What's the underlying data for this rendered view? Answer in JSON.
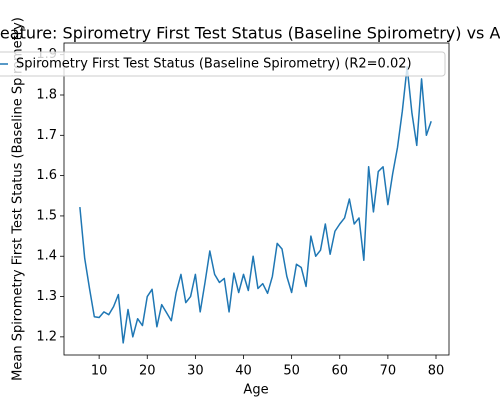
{
  "chart_data": {
    "type": "line",
    "title": "Feature: Spirometry First Test Status (Baseline Spirometry) vs Age",
    "xlabel": "Age",
    "ylabel": "Mean Spirometry First Test Status (Baseline Spirometry)",
    "x": [
      6,
      7,
      8,
      9,
      10,
      11,
      12,
      13,
      14,
      15,
      16,
      17,
      18,
      19,
      20,
      21,
      22,
      23,
      24,
      25,
      26,
      27,
      28,
      29,
      30,
      31,
      32,
      33,
      34,
      35,
      36,
      37,
      38,
      39,
      40,
      41,
      42,
      43,
      44,
      45,
      46,
      47,
      48,
      49,
      50,
      51,
      52,
      53,
      54,
      55,
      56,
      57,
      58,
      59,
      60,
      61,
      62,
      63,
      64,
      65,
      66,
      67,
      68,
      69,
      70,
      71,
      72,
      73,
      74,
      75,
      76,
      77,
      78,
      79
    ],
    "series": [
      {
        "name": "Spirometry First Test Status (Baseline Spirometry) (R2=0.02)",
        "color": "#1f77b4",
        "values": [
          1.522,
          1.395,
          1.32,
          1.25,
          1.248,
          1.262,
          1.255,
          1.275,
          1.305,
          1.185,
          1.268,
          1.2,
          1.245,
          1.228,
          1.3,
          1.318,
          1.225,
          1.28,
          1.26,
          1.24,
          1.31,
          1.355,
          1.285,
          1.3,
          1.355,
          1.262,
          1.335,
          1.413,
          1.355,
          1.335,
          1.345,
          1.262,
          1.358,
          1.31,
          1.355,
          1.315,
          1.4,
          1.32,
          1.332,
          1.308,
          1.35,
          1.432,
          1.418,
          1.35,
          1.31,
          1.38,
          1.372,
          1.325,
          1.45,
          1.4,
          1.415,
          1.48,
          1.405,
          1.462,
          1.48,
          1.495,
          1.542,
          1.48,
          1.495,
          1.39,
          1.622,
          1.51,
          1.61,
          1.622,
          1.528,
          1.605,
          1.67,
          1.76,
          1.87,
          1.755,
          1.675,
          1.84,
          1.7,
          1.735
        ]
      }
    ],
    "xlim": [
      2.7,
      82.7
    ],
    "ylim": [
      1.155,
      1.929
    ],
    "xticks": [
      10,
      20,
      30,
      40,
      50,
      60,
      70,
      80
    ],
    "yticks": [
      {
        "value": 1.2,
        "label": "1.2"
      },
      {
        "value": 1.3,
        "label": "1.3"
      },
      {
        "value": 1.4,
        "label": "1.4"
      },
      {
        "value": 1.5,
        "label": "1.5"
      },
      {
        "value": 1.6,
        "label": "1.6"
      },
      {
        "value": 1.7,
        "label": "1.7"
      },
      {
        "value": 1.8,
        "label": "1.8"
      },
      {
        "value": 1.9,
        "label": "1.9"
      }
    ],
    "grid": false,
    "legend": "upper left"
  }
}
